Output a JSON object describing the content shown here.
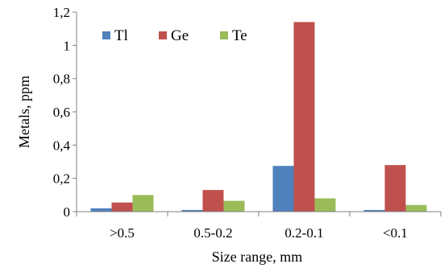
{
  "chart_data": {
    "type": "bar",
    "categories": [
      ">0.5",
      "0.5-0.2",
      "0.2-0.1",
      "<0.1"
    ],
    "series": [
      {
        "name": "Tl",
        "values": [
          0.02,
          0.01,
          0.275,
          0.01
        ],
        "color": "#4f81bd"
      },
      {
        "name": "Ge",
        "values": [
          0.055,
          0.13,
          1.14,
          0.28
        ],
        "color": "#c0504d"
      },
      {
        "name": "Te",
        "values": [
          0.1,
          0.065,
          0.08,
          0.04
        ],
        "color": "#9bbb59"
      }
    ],
    "ylim": [
      0,
      1.2
    ],
    "yticks": [
      0,
      0.2,
      0.4,
      0.6,
      0.8,
      1,
      1.2
    ],
    "ytick_labels": [
      "0",
      "0,2",
      "0,4",
      "0,6",
      "0,8",
      "1",
      "1,2"
    ],
    "xlabel": "Size  range, mm",
    "ylabel": "Metals, ppm",
    "title": "",
    "grid": false,
    "legend_position": "top-left"
  }
}
